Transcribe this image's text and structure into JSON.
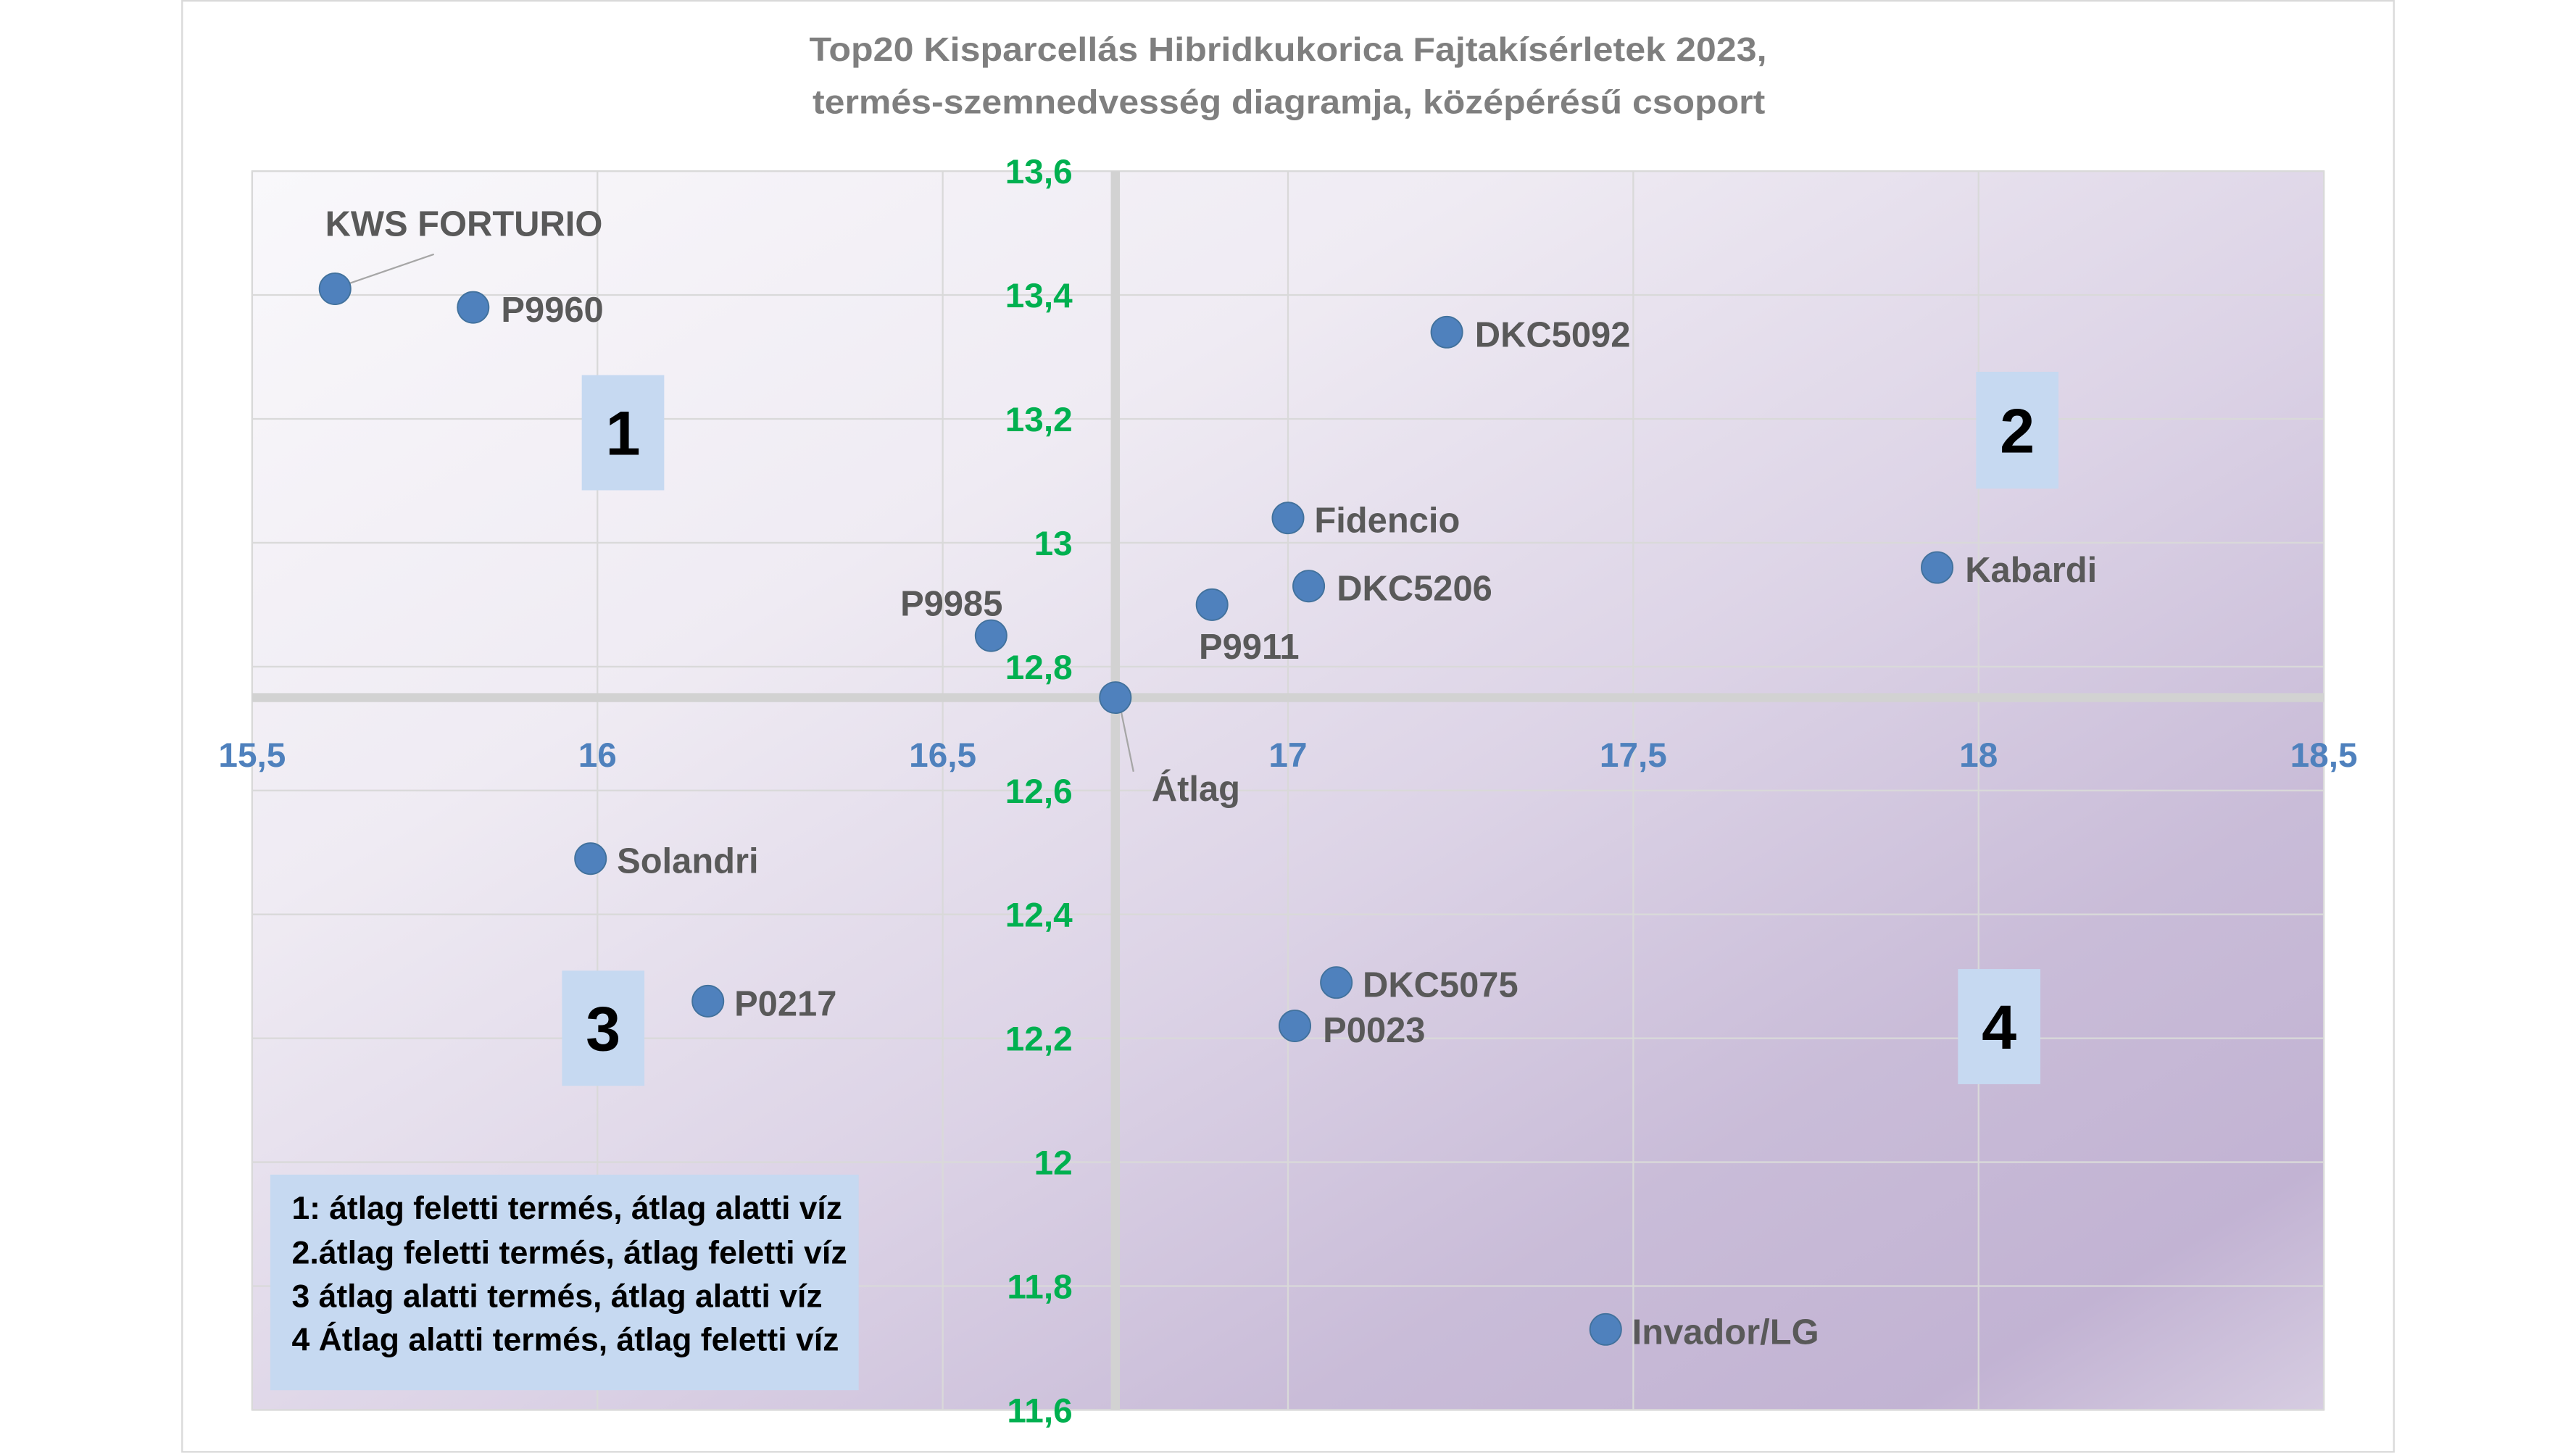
{
  "chart_data": {
    "type": "scatter",
    "title": [
      "Top20 Kisparcellás Hibridkukorica Fajtakísérletek 2023,",
      "termés-szemnedvesség diagramja, középérésű csoport"
    ],
    "xlim": [
      15.5,
      18.5
    ],
    "ylim": [
      11.6,
      13.6
    ],
    "axes_cross_at": {
      "x": 16.75,
      "y": 12.75
    },
    "x_ticks": [
      "15,5",
      "16",
      "16,5",
      "17",
      "17,5",
      "18",
      "18,5"
    ],
    "y_ticks": [
      "13,6",
      "13,4",
      "13,2",
      "13",
      "12,8",
      "12,6",
      "12,4",
      "12,2",
      "12",
      "11,8",
      "11,6"
    ],
    "grid": true,
    "points": [
      {
        "label": "KWS FORTURIO",
        "x": 15.62,
        "y": 13.41
      },
      {
        "label": "P9960",
        "x": 15.82,
        "y": 13.38
      },
      {
        "label": "DKC5092",
        "x": 17.23,
        "y": 13.34
      },
      {
        "label": "Fidencio",
        "x": 17.0,
        "y": 13.04
      },
      {
        "label": "Kabardi",
        "x": 17.94,
        "y": 12.96
      },
      {
        "label": "DKC5206",
        "x": 17.03,
        "y": 12.93
      },
      {
        "label": "P9911",
        "x": 16.89,
        "y": 12.9
      },
      {
        "label": "P9985",
        "x": 16.57,
        "y": 12.85
      },
      {
        "label": "Átlag",
        "x": 16.75,
        "y": 12.75
      },
      {
        "label": "Solandri",
        "x": 15.99,
        "y": 12.49
      },
      {
        "label": "P0217",
        "x": 16.16,
        "y": 12.26
      },
      {
        "label": "DKC5075",
        "x": 17.07,
        "y": 12.29
      },
      {
        "label": "P0023",
        "x": 17.01,
        "y": 12.22
      },
      {
        "label": "Invador/LG",
        "x": 17.46,
        "y": 11.73
      }
    ]
  },
  "quadrants": [
    {
      "label": "1"
    },
    {
      "label": "2"
    },
    {
      "label": "3"
    },
    {
      "label": "4"
    }
  ],
  "legend_box": {
    "lines": [
      "1: átlag feletti termés, átlag alatti víz",
      "2.átlag feletti termés, átlag feletti víz",
      "3 átlag alatti termés, átlag alatti víz",
      "4 Átlag alatti termés, átlag feletti víz"
    ]
  },
  "colors": {
    "marker": "#4f81bd",
    "x_tick": "#4f81bd",
    "y_tick": "#00b050",
    "data_label": "#595959",
    "title": "#7f7f7f",
    "quadrant_box": "#c6d9f1"
  }
}
